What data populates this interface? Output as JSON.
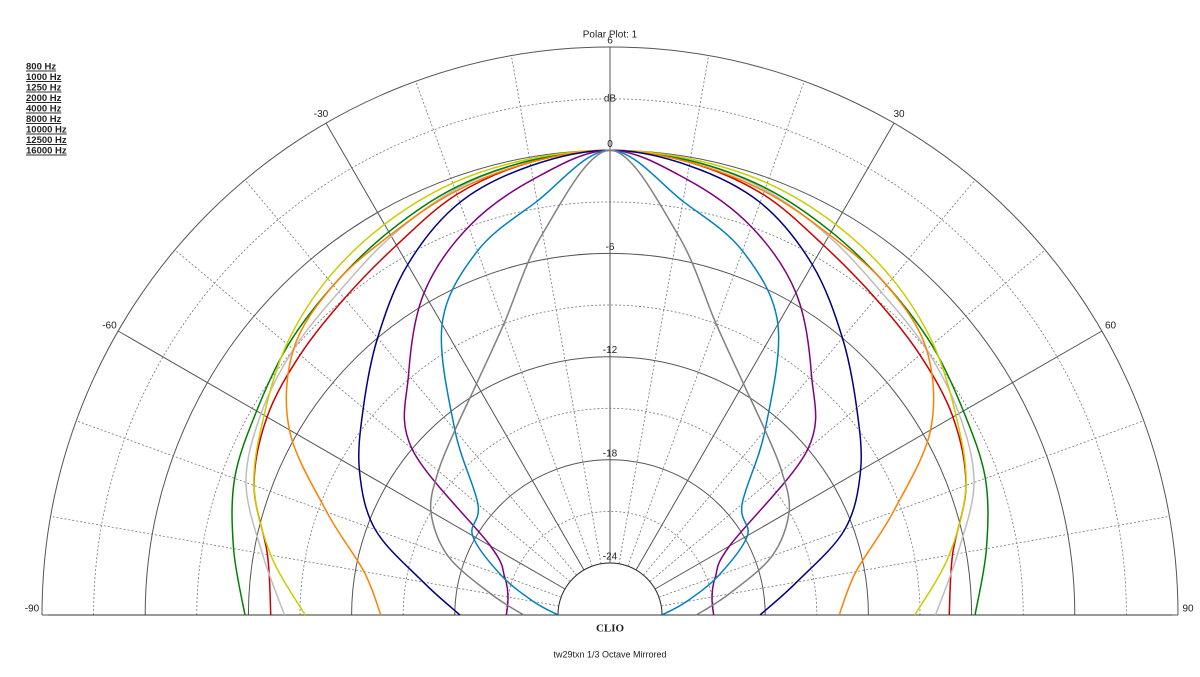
{
  "chart_data": {
    "type": "polar",
    "title": "Polar Plot: 1",
    "ylabel": "dB",
    "brand": "CLIO",
    "footer": "tw29txn   1/3 Octave   Mirrored",
    "x": [
      -90,
      -80,
      -70,
      -60,
      -50,
      -40,
      -30,
      -20,
      -10,
      0,
      10,
      20,
      30,
      40,
      50,
      60,
      70,
      80,
      90
    ],
    "xticks": [
      -90,
      -60,
      -30,
      30,
      60,
      90
    ],
    "xgrid": [
      -90,
      -80,
      -70,
      -60,
      -50,
      -40,
      -30,
      -20,
      -10,
      0,
      10,
      20,
      30,
      40,
      50,
      60,
      70,
      80,
      90
    ],
    "ylim": [
      -24,
      6
    ],
    "yticks": [
      -24,
      -18,
      -12,
      -6,
      0,
      6
    ],
    "ygrid": [
      -24,
      -21,
      -18,
      -15,
      -12,
      -9,
      -6,
      -3,
      0,
      3,
      6
    ],
    "legend": "top-left",
    "series": [
      {
        "name": "800 Hz",
        "color": "#cc0000",
        "values": [
          -7.3,
          -6.8,
          -5,
          -4,
          -3.5,
          -3,
          -2.2,
          -1,
          -0.3,
          0,
          -0.3,
          -1,
          -2.2,
          -3,
          -3.5,
          -4,
          -5,
          -6.8,
          -7.3
        ]
      },
      {
        "name": "1000 Hz",
        "color": "#bdbdbd",
        "values": [
          -8.1,
          -6.5,
          -4.5,
          -3.6,
          -3,
          -2.5,
          -1.6,
          -0.7,
          -0.2,
          0,
          -0.2,
          -0.7,
          -1.6,
          -2.5,
          -3,
          -3.6,
          -4.5,
          -6.5,
          -8.1
        ]
      },
      {
        "name": "1250 Hz",
        "color": "#008000",
        "values": [
          -5.8,
          -4.8,
          -3.8,
          -3.3,
          -2.6,
          -2,
          -1.3,
          -0.6,
          -0.2,
          0,
          -0.2,
          -0.6,
          -1.3,
          -2,
          -2.6,
          -3.3,
          -3.8,
          -4.8,
          -5.8
        ]
      },
      {
        "name": "2000 Hz",
        "color": "#cccc00",
        "values": [
          -9.3,
          -7,
          -5,
          -3.8,
          -2.5,
          -1.5,
          -0.8,
          -0.3,
          -0.1,
          0,
          -0.1,
          -0.3,
          -0.8,
          -1.5,
          -2.5,
          -3.8,
          -5,
          -7,
          -9.3
        ]
      },
      {
        "name": "4000 Hz",
        "color": "#ff8000",
        "values": [
          -13.7,
          -12.5,
          -9.5,
          -5.5,
          -3,
          -2,
          -1.5,
          -0.8,
          -0.3,
          0,
          -0.3,
          -0.8,
          -1.5,
          -2,
          -3,
          -5.5,
          -9.5,
          -12.5,
          -13.7
        ]
      },
      {
        "name": "8000 Hz",
        "color": "#000080",
        "values": [
          -18.3,
          -16,
          -12.5,
          -10.2,
          -8.3,
          -6,
          -3.5,
          -1.5,
          -0.5,
          0,
          -0.5,
          -1.5,
          -3.5,
          -6,
          -8.3,
          -10.2,
          -12.5,
          -16,
          -18.3
        ]
      },
      {
        "name": "10000 Hz",
        "color": "#800080",
        "values": [
          -21,
          -21,
          -20.5,
          -19,
          -12,
          -8.8,
          -5.4,
          -3,
          -1.3,
          0,
          -1.3,
          -3,
          -5.4,
          -8.8,
          -12,
          -19,
          -20.5,
          -21,
          -21
        ]
      },
      {
        "name": "12500 Hz",
        "color": "#0080c0",
        "values": [
          -24,
          -22.5,
          -20.3,
          -17.8,
          -17,
          -13,
          -7.5,
          -4.5,
          -2.6,
          0,
          -2.6,
          -4.5,
          -7.5,
          -13,
          -17,
          -17.8,
          -20.3,
          -22.5,
          -24
        ]
      },
      {
        "name": "16000 Hz",
        "color": "#808080",
        "values": [
          -22,
          -20,
          -17,
          -15,
          -14,
          -13,
          -11.5,
          -9,
          -4.5,
          0,
          -4.5,
          -9,
          -11.5,
          -13,
          -14,
          -15,
          -17,
          -20,
          -22
        ]
      }
    ]
  }
}
